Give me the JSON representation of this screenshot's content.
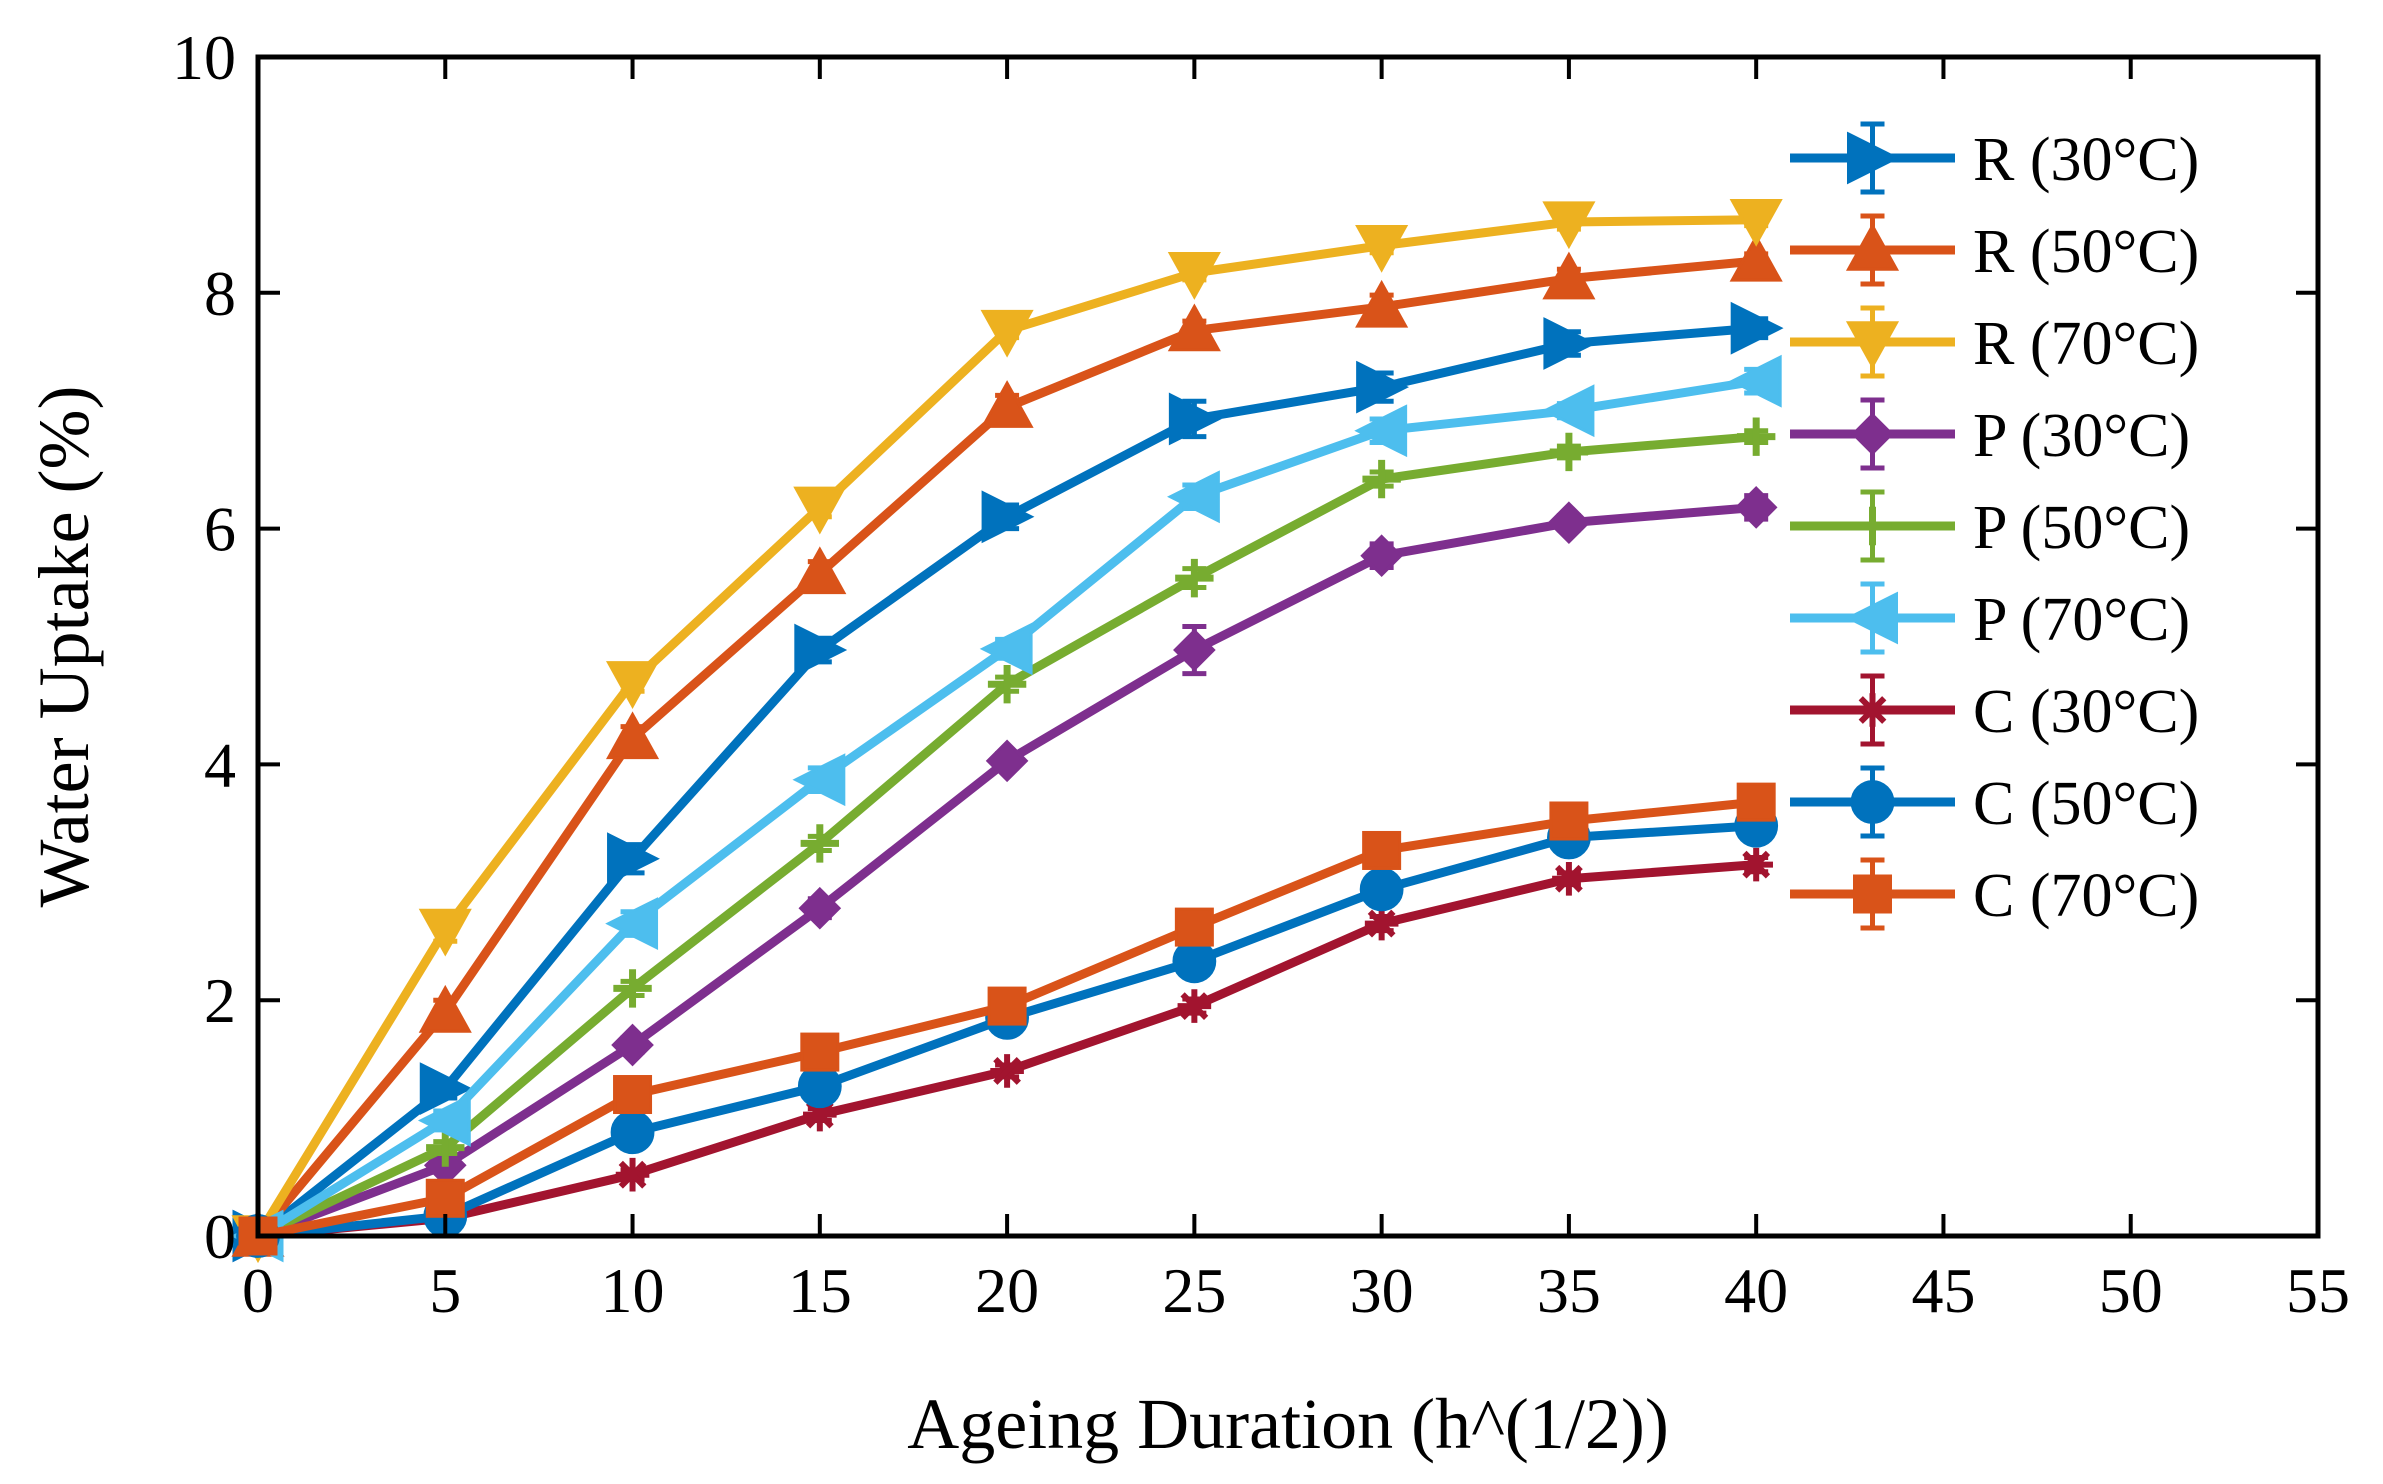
{
  "chart_data": {
    "type": "line",
    "title": "",
    "xlabel": "Ageing Duration (h^(1/2))",
    "ylabel": "Water Uptake (%)",
    "xlim": [
      0,
      55
    ],
    "ylim": [
      0,
      10
    ],
    "xticks": [
      0,
      5,
      10,
      15,
      20,
      25,
      30,
      35,
      40,
      45,
      50,
      55
    ],
    "yticks": [
      0,
      2,
      4,
      6,
      8,
      10
    ],
    "grid": false,
    "legend_position": "top-right",
    "x": [
      0,
      5,
      10,
      15,
      20,
      25,
      30,
      35,
      40
    ],
    "series": [
      {
        "name": "R (30°C)",
        "color": "#0072BD",
        "marker": "triangle-right",
        "values": [
          0,
          1.25,
          3.2,
          4.97,
          6.1,
          6.93,
          7.2,
          7.57,
          7.7
        ],
        "errors": [
          0.05,
          0.08,
          0.12,
          0.1,
          0.1,
          0.15,
          0.12,
          0.1,
          0.08
        ]
      },
      {
        "name": "R (50°C)",
        "color": "#D95319",
        "marker": "triangle-up",
        "values": [
          0,
          1.9,
          4.22,
          5.62,
          7.03,
          7.68,
          7.88,
          8.12,
          8.27
        ],
        "errors": [
          0.05,
          0.1,
          0.1,
          0.1,
          0.1,
          0.08,
          0.1,
          0.08,
          0.06
        ]
      },
      {
        "name": "R (70°C)",
        "color": "#EDB120",
        "marker": "triangle-down",
        "values": [
          0,
          2.6,
          4.7,
          6.18,
          7.68,
          8.17,
          8.4,
          8.6,
          8.62
        ],
        "errors": [
          0.05,
          0.1,
          0.08,
          0.08,
          0.06,
          0.06,
          0.06,
          0.06,
          0.05
        ]
      },
      {
        "name": "P (30°C)",
        "color": "#7E2F8E",
        "marker": "diamond",
        "values": [
          0,
          0.6,
          1.62,
          2.78,
          4.03,
          4.97,
          5.77,
          6.05,
          6.18
        ],
        "errors": [
          0.05,
          0.05,
          0.06,
          0.08,
          0.06,
          0.2,
          0.1,
          0.06,
          0.1
        ]
      },
      {
        "name": "P (50°C)",
        "color": "#77AC30",
        "marker": "plus",
        "values": [
          0,
          0.75,
          2.1,
          3.33,
          4.68,
          5.58,
          6.42,
          6.65,
          6.78
        ],
        "errors": [
          0.05,
          0.05,
          0.06,
          0.06,
          0.06,
          0.08,
          0.06,
          0.05,
          0.05
        ]
      },
      {
        "name": "P (70°C)",
        "color": "#4DBEEE",
        "marker": "triangle-left",
        "values": [
          0,
          0.98,
          2.65,
          3.87,
          4.98,
          6.27,
          6.83,
          7.0,
          7.25
        ],
        "errors": [
          0.05,
          0.08,
          0.1,
          0.1,
          0.08,
          0.1,
          0.1,
          0.06,
          0.1
        ]
      },
      {
        "name": "C (30°C)",
        "color": "#A2142F",
        "marker": "asterisk",
        "values": [
          0,
          0.15,
          0.52,
          1.03,
          1.4,
          1.95,
          2.65,
          3.03,
          3.15
        ],
        "errors": [
          0.05,
          0.04,
          0.04,
          0.05,
          0.05,
          0.06,
          0.06,
          0.05,
          0.06
        ]
      },
      {
        "name": "C (50°C)",
        "color": "#0072BD",
        "marker": "circle",
        "values": [
          0,
          0.17,
          0.88,
          1.27,
          1.85,
          2.33,
          2.94,
          3.38,
          3.48
        ],
        "errors": [
          0.05,
          0.04,
          0.05,
          0.05,
          0.06,
          0.06,
          0.08,
          0.08,
          0.06
        ]
      },
      {
        "name": "C (70°C)",
        "color": "#D95319",
        "marker": "square",
        "values": [
          0,
          0.32,
          1.2,
          1.56,
          1.95,
          2.62,
          3.27,
          3.52,
          3.68
        ],
        "errors": [
          0.05,
          0.04,
          0.05,
          0.05,
          0.05,
          0.06,
          0.05,
          0.05,
          0.06
        ]
      }
    ]
  }
}
